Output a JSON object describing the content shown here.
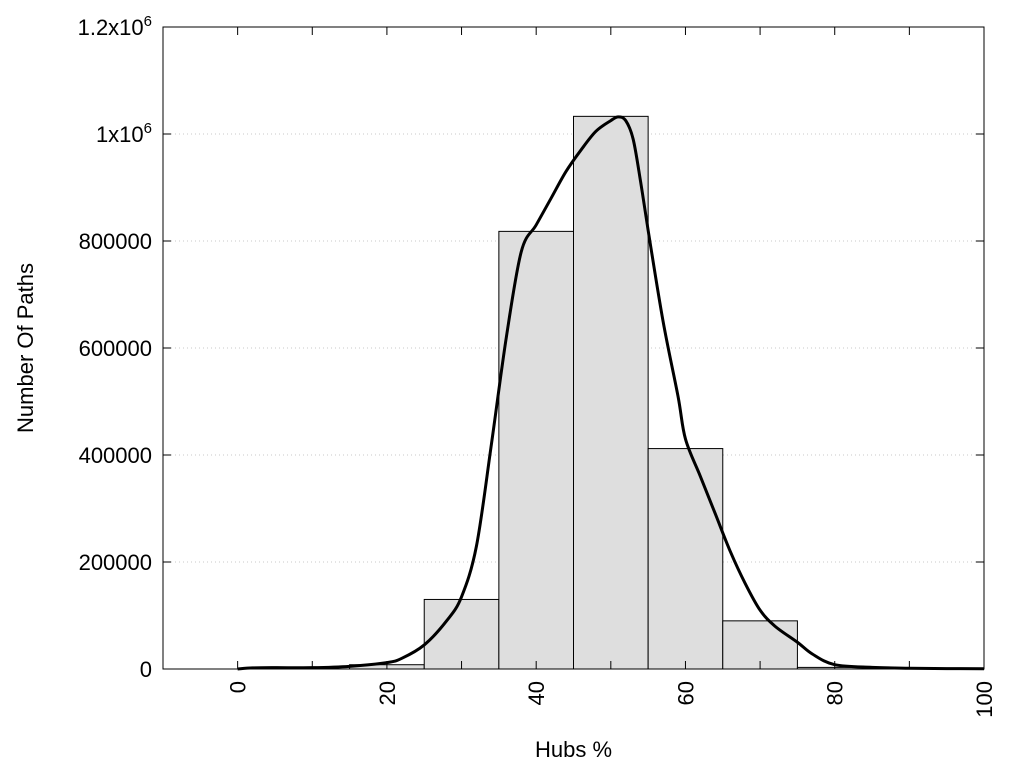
{
  "chart_data": {
    "type": "bar",
    "xlabel": "Hubs %",
    "ylabel": "Number Of Paths",
    "xlim": [
      -10,
      100
    ],
    "ylim": [
      0,
      1200000
    ],
    "grid": "horizontal dotted",
    "x_ticks": [
      {
        "value": 0,
        "label": "0"
      },
      {
        "value": 20,
        "label": "20"
      },
      {
        "value": 40,
        "label": "40"
      },
      {
        "value": 60,
        "label": "60"
      },
      {
        "value": 80,
        "label": "80"
      },
      {
        "value": 100,
        "label": "100"
      }
    ],
    "x_minor_ticks": [
      10,
      30,
      50,
      70,
      90
    ],
    "y_ticks": [
      {
        "value": 0,
        "label": "0"
      },
      {
        "value": 200000,
        "label": "200000"
      },
      {
        "value": 400000,
        "label": "400000"
      },
      {
        "value": 600000,
        "label": "600000"
      },
      {
        "value": 800000,
        "label": "800000"
      },
      {
        "value": 1000000,
        "label": "1x10",
        "sup": "6"
      },
      {
        "value": 1200000,
        "label": "1.2x10",
        "sup": "6"
      }
    ],
    "bars": [
      {
        "x0": 15,
        "x1": 25,
        "value": 8000
      },
      {
        "x0": 25,
        "x1": 35,
        "value": 130000
      },
      {
        "x0": 35,
        "x1": 45,
        "value": 818000
      },
      {
        "x0": 45,
        "x1": 55,
        "value": 1033000
      },
      {
        "x0": 55,
        "x1": 65,
        "value": 412000
      },
      {
        "x0": 65,
        "x1": 75,
        "value": 90000
      },
      {
        "x0": 75,
        "x1": 85,
        "value": 3000
      }
    ],
    "bar_fill": "#dedede",
    "bar_stroke": "#000000",
    "curve": {
      "color": "#000000",
      "points": [
        [
          0,
          0
        ],
        [
          2,
          2000
        ],
        [
          5,
          2500
        ],
        [
          10,
          2500
        ],
        [
          15,
          5000
        ],
        [
          20,
          12000
        ],
        [
          22,
          20000
        ],
        [
          25,
          45000
        ],
        [
          28,
          90000
        ],
        [
          30,
          135000
        ],
        [
          32,
          230000
        ],
        [
          34,
          420000
        ],
        [
          36,
          620000
        ],
        [
          38,
          780000
        ],
        [
          40,
          830000
        ],
        [
          42,
          880000
        ],
        [
          44,
          930000
        ],
        [
          46,
          970000
        ],
        [
          48,
          1005000
        ],
        [
          50,
          1025000
        ],
        [
          51,
          1032000
        ],
        [
          52,
          1025000
        ],
        [
          53,
          990000
        ],
        [
          54,
          910000
        ],
        [
          55,
          820000
        ],
        [
          57,
          650000
        ],
        [
          59,
          510000
        ],
        [
          60,
          430000
        ],
        [
          62,
          360000
        ],
        [
          64,
          290000
        ],
        [
          66,
          220000
        ],
        [
          68,
          160000
        ],
        [
          70,
          110000
        ],
        [
          72,
          80000
        ],
        [
          75,
          50000
        ],
        [
          77,
          28000
        ],
        [
          80,
          8000
        ],
        [
          85,
          3000
        ],
        [
          90,
          1500
        ],
        [
          95,
          800
        ],
        [
          100,
          500
        ]
      ]
    }
  }
}
